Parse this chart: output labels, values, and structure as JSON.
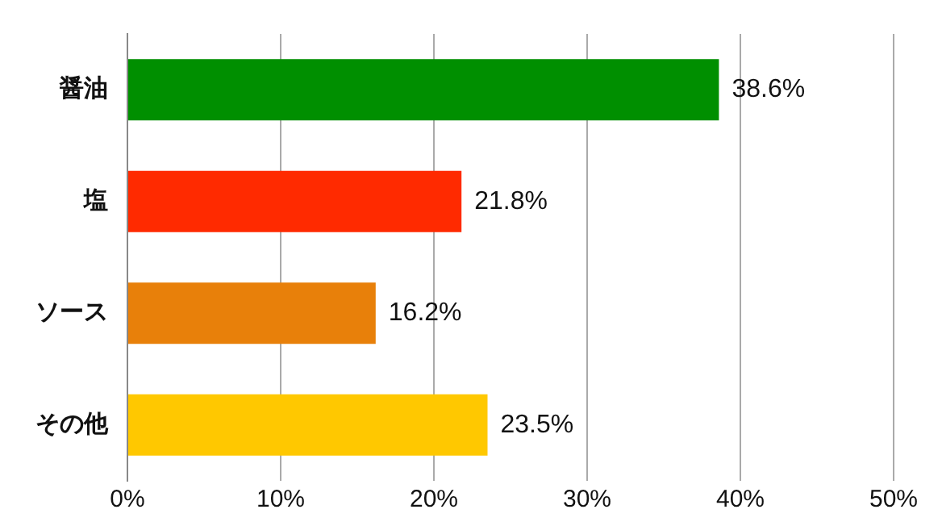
{
  "chart_data": {
    "type": "bar",
    "orientation": "horizontal",
    "categories": [
      "醤油",
      "塩",
      "ソース",
      "その他"
    ],
    "values": [
      38.6,
      21.8,
      16.2,
      23.5
    ],
    "colors": [
      "#008f00",
      "#ff2a00",
      "#e8800a",
      "#ffc800"
    ],
    "value_labels": [
      "38.6%",
      "21.8%",
      "16.2%",
      "23.5%"
    ],
    "xlim": [
      0,
      50
    ],
    "xticks": [
      {
        "value": 0,
        "label": "0%"
      },
      {
        "value": 10,
        "label": "10%"
      },
      {
        "value": 20,
        "label": "20%"
      },
      {
        "value": 30,
        "label": "30%"
      },
      {
        "value": 40,
        "label": "40%"
      },
      {
        "value": 50,
        "label": "50%"
      }
    ],
    "grid": "x",
    "legend": false
  }
}
